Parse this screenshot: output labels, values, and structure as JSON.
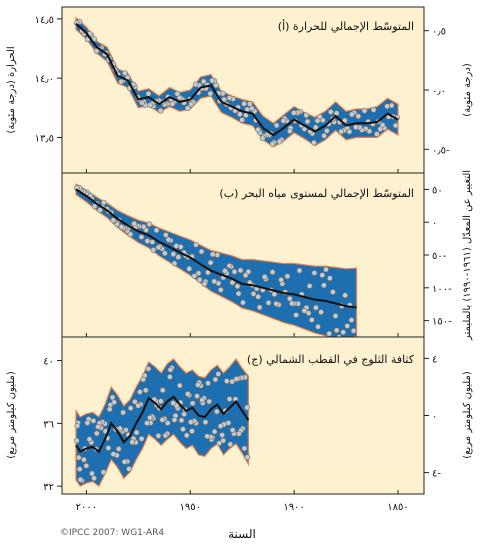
{
  "credit": "©IPCC 2007: WG1-AR4",
  "x_axis": {
    "label": "السنة",
    "ticks": [
      2000,
      1950,
      1900,
      1850
    ],
    "tick_labels": [
      "٢٠٠٠",
      "١٩٥٠",
      "١٩٠٠",
      "١٨٥٠"
    ]
  },
  "colors": {
    "panel_bg": "#fdf1cf",
    "band_fill": "#1d6fb0",
    "band_edge": "#e87d4a",
    "line": "#111111",
    "points": "#c9c9c9"
  },
  "chart_data": [
    {
      "type": "line",
      "title": "(أ) المتوسّط الإجمالي للحرارة",
      "left_axis": {
        "label": "الحرارة (درجة مئوية)",
        "ylim": [
          13.2,
          14.6
        ],
        "ticks": [
          14.5,
          14.0,
          13.5
        ],
        "tick_labels": [
          "١٤٫٥",
          "١٤٫٠",
          "١٣٫٥"
        ]
      },
      "right_axis": {
        "label": "(درجة مئوية)",
        "ylim": [
          -0.7,
          0.7
        ],
        "ticks": [
          0.5,
          0.0,
          -0.5
        ],
        "tick_labels": [
          "٠٫٥",
          "٠٫٠",
          "٠٫٥-"
        ]
      },
      "series": [
        {
          "values": [
            [
              1850,
              13.65
            ],
            [
              1855,
              13.7
            ],
            [
              1860,
              13.63
            ],
            [
              1865,
              13.62
            ],
            [
              1870,
              13.62
            ],
            [
              1875,
              13.6
            ],
            [
              1880,
              13.68
            ],
            [
              1885,
              13.6
            ],
            [
              1890,
              13.55
            ],
            [
              1895,
              13.6
            ],
            [
              1900,
              13.65
            ],
            [
              1905,
              13.58
            ],
            [
              1910,
              13.52
            ],
            [
              1915,
              13.58
            ],
            [
              1920,
              13.7
            ],
            [
              1925,
              13.72
            ],
            [
              1930,
              13.76
            ],
            [
              1935,
              13.8
            ],
            [
              1940,
              13.94
            ],
            [
              1945,
              13.92
            ],
            [
              1950,
              13.82
            ],
            [
              1955,
              13.8
            ],
            [
              1960,
              13.84
            ],
            [
              1965,
              13.78
            ],
            [
              1970,
              13.84
            ],
            [
              1975,
              13.82
            ],
            [
              1980,
              13.98
            ],
            [
              1985,
              14.02
            ],
            [
              1990,
              14.2
            ],
            [
              1995,
              14.26
            ],
            [
              2000,
              14.38
            ],
            [
              2005,
              14.46
            ]
          ]
        }
      ],
      "uncertainty": [
        0.13,
        0.13,
        0.13,
        0.12,
        0.12,
        0.12,
        0.12,
        0.12,
        0.12,
        0.11,
        0.11,
        0.11,
        0.1,
        0.1,
        0.1,
        0.1,
        0.09,
        0.09,
        0.09,
        0.09,
        0.08,
        0.08,
        0.08,
        0.07,
        0.07,
        0.07,
        0.06,
        0.06,
        0.06,
        0.05,
        0.05,
        0.05
      ]
    },
    {
      "type": "line",
      "title": "(ب) المتوسّط الإجمالي لمستوى مياه البحر",
      "left_axis": null,
      "right_axis": {
        "label": "التغيير عن المعدّل (١٩٦١-١٩٩٠) بالمليمتر",
        "ylim": [
          -175,
          75
        ],
        "ticks": [
          50,
          0,
          -50,
          -100,
          -150
        ],
        "tick_labels": [
          "٥٠",
          "٠",
          "٥٠-",
          "١٠٠-",
          "١٥٠-"
        ]
      },
      "series": [
        {
          "values": [
            [
              1870,
              -130
            ],
            [
              1875,
              -128
            ],
            [
              1880,
              -124
            ],
            [
              1885,
              -120
            ],
            [
              1890,
              -118
            ],
            [
              1895,
              -114
            ],
            [
              1900,
              -110
            ],
            [
              1905,
              -108
            ],
            [
              1910,
              -104
            ],
            [
              1915,
              -100
            ],
            [
              1920,
              -96
            ],
            [
              1925,
              -94
            ],
            [
              1930,
              -86
            ],
            [
              1935,
              -80
            ],
            [
              1940,
              -74
            ],
            [
              1945,
              -64
            ],
            [
              1950,
              -54
            ],
            [
              1955,
              -46
            ],
            [
              1960,
              -38
            ],
            [
              1965,
              -30
            ],
            [
              1970,
              -20
            ],
            [
              1975,
              -14
            ],
            [
              1980,
              -5
            ],
            [
              1985,
              5
            ],
            [
              1990,
              18
            ],
            [
              1995,
              28
            ],
            [
              2000,
              40
            ],
            [
              2005,
              50
            ]
          ]
        }
      ],
      "uncertainty": [
        60,
        57,
        55,
        53,
        51,
        49,
        47,
        45,
        43,
        41,
        39,
        37,
        35,
        33,
        31,
        29,
        27,
        25,
        23,
        21,
        19,
        17,
        15,
        13,
        11,
        10,
        9,
        8
      ]
    },
    {
      "type": "line",
      "title": "(ج) كثافة الثلوج في القطب الشمالي",
      "left_axis": {
        "label": "(مليون كيلومتر مربع)",
        "ylim": [
          31.5,
          41.5
        ],
        "ticks": [
          40,
          36,
          32
        ],
        "tick_labels": [
          "٤٠",
          "٣٦",
          "٣٢"
        ]
      },
      "right_axis": {
        "label": "(مليون كيلومتر مربع)",
        "ylim": [
          -5.5,
          5.5
        ],
        "ticks": [
          4,
          0,
          -4
        ],
        "tick_labels": [
          "٤",
          "٠",
          "٤-"
        ]
      },
      "series": [
        {
          "values": [
            [
              1922,
              36.2
            ],
            [
              1925,
              36.8
            ],
            [
              1928,
              37.4
            ],
            [
              1931,
              37.0
            ],
            [
              1934,
              36.6
            ],
            [
              1937,
              37.2
            ],
            [
              1940,
              36.9
            ],
            [
              1943,
              36.4
            ],
            [
              1946,
              36.5
            ],
            [
              1949,
              37.0
            ],
            [
              1952,
              36.8
            ],
            [
              1955,
              37.2
            ],
            [
              1958,
              37.7
            ],
            [
              1961,
              37.4
            ],
            [
              1964,
              36.9
            ],
            [
              1967,
              37.3
            ],
            [
              1970,
              37.6
            ],
            [
              1973,
              36.7
            ],
            [
              1976,
              36.0
            ],
            [
              1979,
              35.2
            ],
            [
              1982,
              34.8
            ],
            [
              1985,
              35.5
            ],
            [
              1988,
              36.0
            ],
            [
              1991,
              35.0
            ],
            [
              1994,
              34.2
            ],
            [
              1997,
              34.5
            ],
            [
              2000,
              34.4
            ],
            [
              2003,
              34.2
            ],
            [
              2005,
              34.6
            ]
          ]
        }
      ],
      "uncertainty": [
        2.8,
        2.7,
        2.7,
        2.6,
        2.6,
        2.5,
        2.5,
        2.5,
        2.5,
        2.4,
        2.4,
        2.4,
        2.4,
        2.4,
        2.3,
        2.3,
        2.3,
        2.3,
        2.3,
        2.3,
        2.3,
        2.3,
        2.3,
        2.2,
        2.2,
        2.2,
        2.2,
        2.2,
        2.2
      ]
    }
  ]
}
